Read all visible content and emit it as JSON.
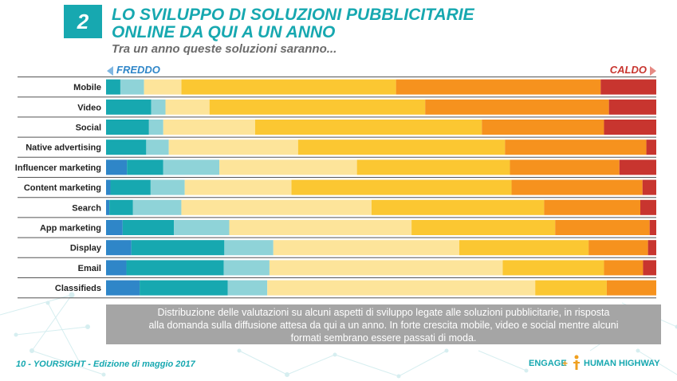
{
  "header": {
    "number": "2",
    "title_line1": "LO SVILUPPO DI SOLUZIONI PUBBLICITARIE",
    "title_line2": "ONLINE DA QUI A UN ANNO",
    "subtitle": "Tra un anno queste soluzioni saranno..."
  },
  "legend": {
    "cold": "FREDDO",
    "hot": "CALDO"
  },
  "caption": {
    "line1": "Distribuzione delle valutazioni su alcuni aspetti di sviluppo legate alle soluzioni pubblicitarie, in risposta",
    "line2": "alla domanda sulla diffusione attesa da qui a un anno. In forte crescita mobile, video e social mentre alcuni",
    "line3": "formati sembrano essere passati di moda."
  },
  "footer": {
    "page": "10",
    "text": " - YOURSIGHT - Edizione di maggio 2017"
  },
  "logos": {
    "engage": "ENGAGE",
    "plus": "+",
    "human_highway": "HUMAN HIGHWAY"
  },
  "chart_data": {
    "type": "bar",
    "stacked": true,
    "orientation": "horizontal",
    "normalized": true,
    "categories": [
      "Mobile",
      "Video",
      "Social",
      "Native advertising",
      "Influencer marketing",
      "Content marketing",
      "Search",
      "App marketing",
      "Display",
      "Email",
      "Classifieds"
    ],
    "colors": [
      "#2f86c8",
      "#17a8b0",
      "#8fd3d8",
      "#fde49a",
      "#fbc732",
      "#f6921e",
      "#c8352f"
    ],
    "series": [
      {
        "values": [
          0.0,
          0.0,
          0.0,
          0.0,
          3.8,
          0.8,
          0.6,
          3.0,
          4.6,
          3.7,
          6.1
        ]
      },
      {
        "values": [
          2.6,
          8.2,
          7.8,
          7.3,
          6.6,
          7.3,
          4.3,
          9.3,
          16.9,
          17.7,
          16.0
        ]
      },
      {
        "values": [
          4.3,
          2.6,
          2.6,
          4.1,
          10.2,
          6.2,
          8.8,
          10.0,
          8.9,
          8.3,
          7.2
        ]
      },
      {
        "values": [
          6.8,
          8.0,
          16.7,
          23.5,
          25.0,
          19.4,
          34.6,
          33.0,
          33.8,
          42.4,
          48.7
        ]
      },
      {
        "values": [
          39.0,
          39.2,
          41.2,
          37.6,
          27.8,
          40.0,
          31.4,
          26.0,
          23.5,
          18.4,
          13.0
        ]
      },
      {
        "values": [
          37.2,
          33.4,
          22.2,
          25.7,
          19.9,
          23.8,
          17.5,
          17.1,
          10.8,
          7.1,
          9.0
        ]
      },
      {
        "values": [
          10.1,
          8.6,
          9.5,
          1.8,
          6.7,
          2.5,
          2.9,
          1.2,
          1.5,
          2.4,
          0.0
        ]
      }
    ],
    "xlim": [
      0,
      100
    ],
    "grid": false,
    "legend": "top"
  }
}
